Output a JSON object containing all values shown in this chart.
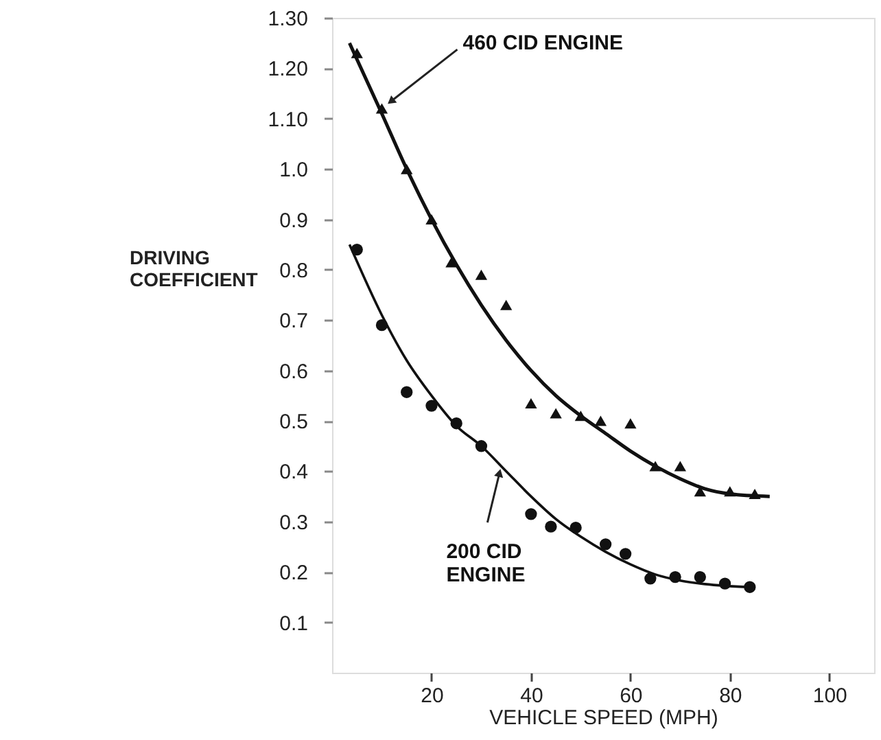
{
  "chart_data": {
    "type": "scatter",
    "xlabel": "VEHICLE SPEED (MPH)",
    "ylabel": "DRIVING\nCOEFFICIENT",
    "xlim": [
      0,
      109
    ],
    "xticks": [
      20,
      40,
      60,
      80,
      100
    ],
    "ylim": [
      0,
      1.3
    ],
    "yticks": [
      {
        "value": 0.1,
        "label": "0.1"
      },
      {
        "value": 0.2,
        "label": "0.2"
      },
      {
        "value": 0.3,
        "label": "0.3"
      },
      {
        "value": 0.4,
        "label": "0.4"
      },
      {
        "value": 0.5,
        "label": "0.5"
      },
      {
        "value": 0.6,
        "label": "0.6"
      },
      {
        "value": 0.7,
        "label": "0.7"
      },
      {
        "value": 0.8,
        "label": "0.8"
      },
      {
        "value": 0.9,
        "label": "0.9"
      },
      {
        "value": 1.0,
        "label": "1.0"
      },
      {
        "value": 1.1,
        "label": "1.10"
      },
      {
        "value": 1.2,
        "label": "1.20"
      },
      {
        "value": 1.3,
        "label": "1.30"
      }
    ],
    "grid": false,
    "series": [
      {
        "marker": "triangle",
        "color": "#111111",
        "x": [
          5,
          10,
          15,
          20,
          24,
          30,
          35,
          40,
          45,
          50,
          54,
          60,
          65,
          70,
          74,
          80,
          85
        ],
        "values": [
          1.23,
          1.12,
          1.0,
          0.9,
          0.815,
          0.79,
          0.73,
          0.535,
          0.515,
          0.51,
          0.5,
          0.495,
          0.41,
          0.41,
          0.36,
          0.36,
          0.355
        ]
      },
      {
        "marker": "circle",
        "color": "#111111",
        "x": [
          5,
          10,
          15,
          20,
          25,
          30,
          40,
          44,
          49,
          55,
          59,
          64,
          69,
          74,
          79,
          84
        ],
        "values": [
          0.84,
          0.69,
          0.557,
          0.53,
          0.495,
          0.45,
          0.315,
          0.29,
          0.288,
          0.255,
          0.236,
          0.187,
          0.19,
          0.19,
          0.177,
          0.17
        ]
      },
      {
        "type": "line",
        "marker": "none",
        "line_style": "solid",
        "color": "#111111",
        "x": [
          3.5,
          10,
          15,
          20,
          25,
          30,
          35,
          40,
          45,
          50,
          55,
          60,
          65,
          70,
          75,
          80,
          88
        ],
        "values": [
          1.25,
          1.11,
          1.0,
          0.9,
          0.81,
          0.73,
          0.66,
          0.6,
          0.55,
          0.51,
          0.475,
          0.44,
          0.41,
          0.385,
          0.365,
          0.355,
          0.35
        ]
      },
      {
        "type": "line",
        "marker": "none",
        "line_style": "solid",
        "color": "#111111",
        "x": [
          3.5,
          10,
          15,
          20,
          25,
          30,
          35,
          40,
          45,
          50,
          55,
          60,
          65,
          70,
          75,
          84
        ],
        "values": [
          0.85,
          0.71,
          0.62,
          0.55,
          0.49,
          0.45,
          0.4,
          0.35,
          0.305,
          0.27,
          0.24,
          0.215,
          0.195,
          0.183,
          0.176,
          0.17
        ]
      }
    ],
    "annotations": [
      {
        "text": "460 CID ENGINE",
        "x": 10,
        "y": 1.12
      },
      {
        "text": "200 CID\nENGINE",
        "x": 34,
        "y": 0.41
      }
    ]
  }
}
